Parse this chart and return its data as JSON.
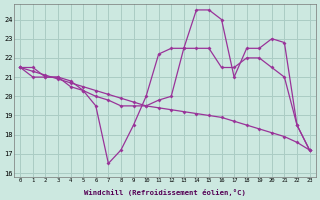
{
  "xlabel": "Windchill (Refroidissement éolien,°C)",
  "bg_color": "#cce8e0",
  "grid_color": "#aaccc4",
  "line_color": "#993399",
  "xlim_min": -0.5,
  "xlim_max": 23.5,
  "ylim_min": 15.8,
  "ylim_max": 24.8,
  "yticks": [
    16,
    17,
    18,
    19,
    20,
    21,
    22,
    23,
    24
  ],
  "xticks": [
    0,
    1,
    2,
    3,
    4,
    5,
    6,
    7,
    8,
    9,
    10,
    11,
    12,
    13,
    14,
    15,
    16,
    17,
    18,
    19,
    20,
    21,
    22,
    23
  ],
  "line1_x": [
    0,
    1,
    2,
    3,
    4,
    5,
    6,
    7,
    8,
    9,
    10,
    11,
    12,
    13,
    14,
    15,
    16,
    17,
    18,
    19,
    20,
    21,
    22,
    23
  ],
  "line1_y": [
    21.5,
    21.5,
    21.0,
    21.0,
    20.8,
    20.3,
    19.5,
    16.5,
    17.2,
    18.5,
    20.0,
    22.2,
    22.5,
    22.5,
    24.5,
    24.5,
    24.0,
    21.0,
    22.5,
    22.5,
    23.0,
    22.8,
    18.5,
    17.2
  ],
  "line2_x": [
    0,
    1,
    2,
    3,
    4,
    5,
    6,
    7,
    8,
    9,
    10,
    11,
    12,
    13,
    14,
    15,
    16,
    17,
    18,
    19,
    20,
    21,
    22,
    23
  ],
  "line2_y": [
    21.5,
    21.0,
    21.0,
    21.0,
    20.5,
    20.3,
    20.0,
    19.8,
    19.5,
    19.5,
    19.5,
    19.8,
    20.0,
    22.5,
    22.5,
    22.5,
    21.5,
    21.5,
    22.0,
    22.0,
    21.5,
    21.0,
    18.5,
    17.2
  ],
  "line3_x": [
    0,
    1,
    2,
    3,
    4,
    5,
    6,
    7,
    8,
    9,
    10,
    11,
    12,
    13,
    14,
    15,
    16,
    17,
    18,
    19,
    20,
    21,
    22,
    23
  ],
  "line3_y": [
    21.5,
    21.3,
    21.1,
    20.9,
    20.7,
    20.5,
    20.3,
    20.1,
    19.9,
    19.7,
    19.5,
    19.4,
    19.3,
    19.2,
    19.1,
    19.0,
    18.9,
    18.7,
    18.5,
    18.3,
    18.1,
    17.9,
    17.6,
    17.2
  ]
}
